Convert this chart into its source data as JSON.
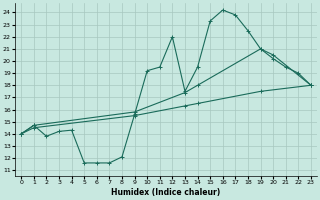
{
  "xlabel": "Humidex (Indice chaleur)",
  "bg_color": "#c8e8e0",
  "grid_color": "#a8c8c0",
  "line_color": "#1a6b5a",
  "xlim": [
    -0.5,
    23.5
  ],
  "ylim": [
    10.5,
    24.8
  ],
  "xticks": [
    0,
    1,
    2,
    3,
    4,
    5,
    6,
    7,
    8,
    9,
    10,
    11,
    12,
    13,
    14,
    15,
    16,
    17,
    18,
    19,
    20,
    21,
    22,
    23
  ],
  "yticks": [
    11,
    12,
    13,
    14,
    15,
    16,
    17,
    18,
    19,
    20,
    21,
    22,
    23,
    24
  ],
  "line1_x": [
    0,
    1,
    2,
    3,
    4,
    5,
    6,
    7,
    8,
    9,
    10,
    11,
    12,
    13,
    14,
    15,
    16,
    17,
    18,
    19,
    20,
    21,
    22,
    23
  ],
  "line1_y": [
    14.0,
    14.7,
    13.8,
    14.2,
    14.3,
    11.6,
    11.6,
    11.6,
    12.1,
    15.6,
    19.2,
    19.5,
    22.0,
    17.5,
    19.5,
    23.3,
    24.2,
    23.8,
    22.5,
    21.0,
    20.2,
    19.5,
    19.0,
    18.0
  ],
  "line2_x": [
    0,
    1,
    9,
    13,
    14,
    19,
    20,
    23
  ],
  "line2_y": [
    14.0,
    14.7,
    15.8,
    17.4,
    18.0,
    21.0,
    20.5,
    18.0
  ],
  "line3_x": [
    0,
    1,
    9,
    13,
    14,
    19,
    23
  ],
  "line3_y": [
    14.0,
    14.5,
    15.5,
    16.3,
    16.5,
    17.5,
    18.0
  ]
}
